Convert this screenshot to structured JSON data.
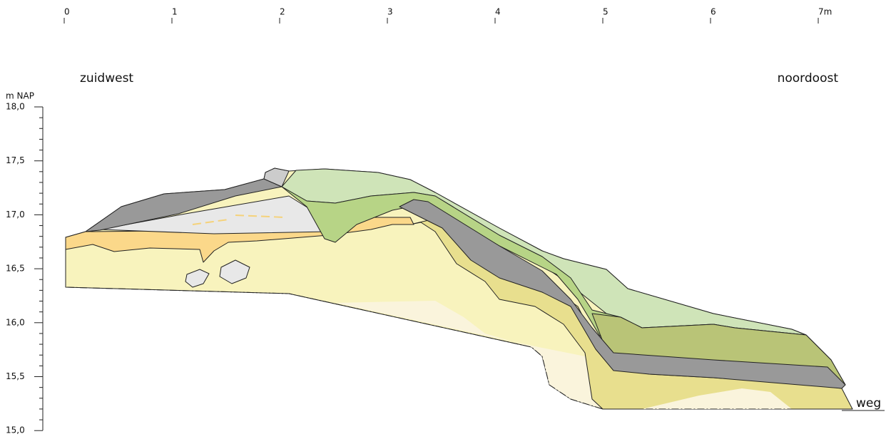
{
  "scale_top": {
    "labels": [
      "0",
      "1",
      "2",
      "3",
      "4",
      "5",
      "6",
      "7m"
    ]
  },
  "side_labels": {
    "left": "zuidwest",
    "right": "noordoost"
  },
  "height_axis": {
    "title": "m NAP",
    "labels": [
      "18,0",
      "17,5",
      "17,0",
      "16,5",
      "16,0",
      "15,5",
      "15,0"
    ]
  },
  "road_label": "weg"
}
